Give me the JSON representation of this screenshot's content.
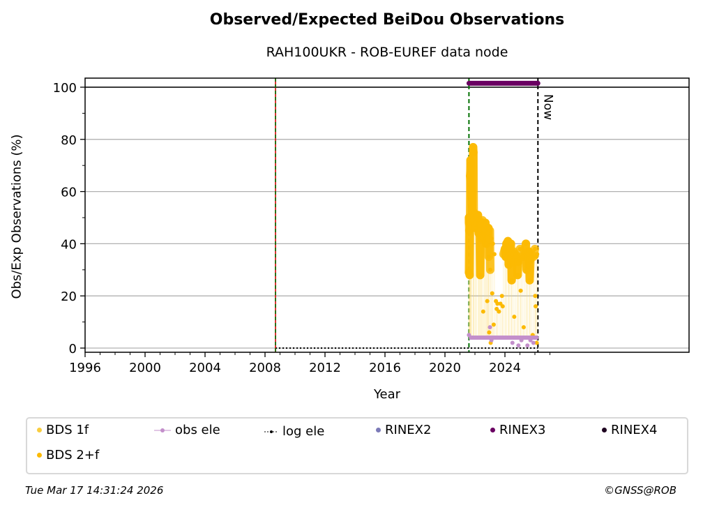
{
  "chart_data": {
    "type": "scatter",
    "title": "Observed/Expected BeiDou Observations",
    "subtitle": "RAH100UKR - ROB-EUREF data node",
    "xlabel": "Year",
    "ylabel": "Obs/Exp Observations (%)",
    "xlim": [
      1996,
      2027.1
    ],
    "ylim": [
      -1,
      103
    ],
    "xticks": [
      1996,
      2000,
      2004,
      2008,
      2012,
      2016,
      2020,
      2024
    ],
    "yticks": [
      0,
      20,
      40,
      60,
      80,
      100
    ],
    "grid": "horizontal",
    "legend_position": "bottom",
    "vlines": [
      {
        "x": 2008.7,
        "style": "green-red-dashed"
      },
      {
        "x": 2021.6,
        "style": "green-dashed"
      },
      {
        "x": 2026.2,
        "style": "black-dashed",
        "label": "Now"
      }
    ],
    "hline": 100,
    "colors": {
      "bds1f": "#f9cd3f",
      "bds2f": "#fcba03",
      "obsele": "#c38fcb",
      "logele": "#000000",
      "rinex2": "#7c7ab8",
      "rinex3": "#6a0062",
      "rinex4": "#1f0421"
    },
    "legend": [
      "BDS 1f",
      "obs ele",
      "log ele",
      "RINEX2",
      "RINEX3",
      "RINEX4",
      "BDS 2+f"
    ],
    "rinex3": {
      "start": 2021.6,
      "end": 2026.2,
      "value": 101.5
    },
    "log_ele": {
      "start": 2008.7,
      "end": 2026.2,
      "value": 0
    },
    "obs_ele": [
      [
        2021.6,
        5
      ],
      [
        2021.8,
        4
      ],
      [
        2022.0,
        4
      ],
      [
        2022.5,
        4
      ],
      [
        2022.9,
        4
      ],
      [
        2023.0,
        8
      ],
      [
        2023.1,
        3
      ],
      [
        2023.5,
        4
      ],
      [
        2024.0,
        4
      ],
      [
        2024.3,
        4
      ],
      [
        2024.5,
        2
      ],
      [
        2024.7,
        4
      ],
      [
        2024.9,
        1
      ],
      [
        2025.1,
        3
      ],
      [
        2025.3,
        4
      ],
      [
        2025.5,
        1
      ],
      [
        2025.7,
        3
      ],
      [
        2025.9,
        2
      ],
      [
        2026.1,
        4
      ]
    ],
    "bds_2f": [
      [
        2021.6,
        48
      ],
      [
        2021.6,
        50
      ],
      [
        2021.62,
        45
      ],
      [
        2021.6,
        29
      ],
      [
        2021.65,
        28
      ],
      [
        2021.7,
        72
      ],
      [
        2021.72,
        70
      ],
      [
        2021.68,
        66
      ],
      [
        2021.75,
        58
      ],
      [
        2021.8,
        49
      ],
      [
        2021.88,
        77
      ],
      [
        2021.9,
        75
      ],
      [
        2021.92,
        52
      ],
      [
        2022.0,
        48
      ],
      [
        2022.05,
        46
      ],
      [
        2022.1,
        50
      ],
      [
        2022.2,
        51
      ],
      [
        2022.25,
        44
      ],
      [
        2022.3,
        47
      ],
      [
        2022.35,
        28
      ],
      [
        2022.4,
        48
      ],
      [
        2022.45,
        42
      ],
      [
        2022.5,
        49
      ],
      [
        2022.55,
        14
      ],
      [
        2022.6,
        47
      ],
      [
        2022.65,
        45
      ],
      [
        2022.7,
        48
      ],
      [
        2022.75,
        40
      ],
      [
        2022.8,
        46
      ],
      [
        2022.82,
        18
      ],
      [
        2022.85,
        44
      ],
      [
        2022.9,
        46
      ],
      [
        2022.92,
        35
      ],
      [
        2022.95,
        6
      ],
      [
        2023.0,
        45
      ],
      [
        2023.02,
        30
      ],
      [
        2023.05,
        2
      ],
      [
        2023.1,
        42
      ],
      [
        2023.15,
        21
      ],
      [
        2023.2,
        40
      ],
      [
        2023.25,
        9
      ],
      [
        2023.3,
        36
      ],
      [
        2023.4,
        18
      ],
      [
        2023.45,
        15
      ],
      [
        2023.5,
        17
      ],
      [
        2023.6,
        14
      ],
      [
        2023.7,
        17
      ],
      [
        2023.8,
        20
      ],
      [
        2023.85,
        16
      ],
      [
        2023.9,
        36
      ],
      [
        2024.0,
        38
      ],
      [
        2024.05,
        35
      ],
      [
        2024.1,
        40
      ],
      [
        2024.2,
        41
      ],
      [
        2024.25,
        32
      ],
      [
        2024.3,
        39
      ],
      [
        2024.4,
        40
      ],
      [
        2024.45,
        26
      ],
      [
        2024.5,
        36
      ],
      [
        2024.6,
        37
      ],
      [
        2024.62,
        12
      ],
      [
        2024.7,
        36
      ],
      [
        2024.8,
        35
      ],
      [
        2024.85,
        28
      ],
      [
        2024.9,
        33
      ],
      [
        2025.0,
        38
      ],
      [
        2025.05,
        22
      ],
      [
        2025.1,
        35
      ],
      [
        2025.2,
        35
      ],
      [
        2025.25,
        8
      ],
      [
        2025.3,
        37
      ],
      [
        2025.4,
        40
      ],
      [
        2025.45,
        30
      ],
      [
        2025.5,
        36
      ],
      [
        2025.6,
        37
      ],
      [
        2025.65,
        26
      ],
      [
        2025.7,
        34
      ],
      [
        2025.8,
        36
      ],
      [
        2025.85,
        5
      ],
      [
        2025.9,
        35
      ],
      [
        2026.0,
        38
      ],
      [
        2026.02,
        20
      ],
      [
        2026.05,
        16
      ],
      [
        2026.1,
        35
      ],
      [
        2026.12,
        2
      ],
      [
        2026.15,
        36
      ]
    ]
  },
  "footer": {
    "timestamp": "Tue Mar 17 14:31:24 2026",
    "copyright": "©GNSS@ROB"
  }
}
